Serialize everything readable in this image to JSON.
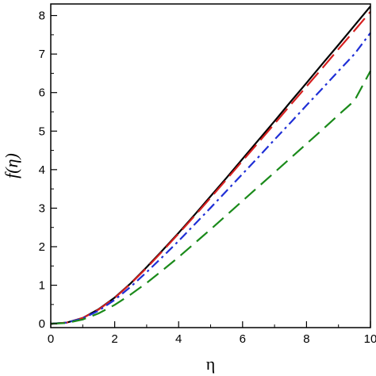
{
  "chart_data": {
    "type": "line",
    "title": "",
    "xlabel": "η",
    "ylabel": "f(η)",
    "xlim": [
      0,
      10
    ],
    "ylim": [
      -0.1,
      8.3
    ],
    "xticks": [
      0,
      2,
      4,
      6,
      8,
      10
    ],
    "yticks": [
      0,
      1,
      2,
      3,
      4,
      5,
      6,
      7,
      8
    ],
    "grid": false,
    "legend": "none",
    "series": [
      {
        "color": "#000000",
        "dash": "solid",
        "x": [
          0,
          0.5,
          1,
          1.5,
          2,
          2.5,
          3,
          3.5,
          4,
          4.5,
          5,
          5.5,
          6,
          6.5,
          7,
          7.5,
          8,
          8.5,
          9,
          9.5,
          10
        ],
        "y": [
          0,
          0.03,
          0.15,
          0.38,
          0.68,
          1.05,
          1.47,
          1.91,
          2.36,
          2.83,
          3.31,
          3.79,
          4.28,
          4.77,
          5.26,
          5.76,
          6.25,
          6.75,
          7.24,
          7.74,
          8.24
        ]
      },
      {
        "color": "#d62020",
        "dash": "longdash",
        "x": [
          0,
          0.5,
          1,
          1.5,
          2,
          2.5,
          3,
          3.5,
          4,
          4.5,
          5,
          5.5,
          6,
          6.5,
          7,
          7.5,
          8,
          8.5,
          9,
          9.5,
          10
        ],
        "y": [
          0,
          0.03,
          0.15,
          0.37,
          0.67,
          1.04,
          1.45,
          1.89,
          2.34,
          2.8,
          3.27,
          3.75,
          4.23,
          4.71,
          5.19,
          5.68,
          6.16,
          6.64,
          7.13,
          7.61,
          8.1
        ]
      },
      {
        "color": "#1f2fd6",
        "dash": "dashdot",
        "x": [
          0,
          0.5,
          1,
          1.5,
          2,
          2.5,
          3,
          3.5,
          4,
          4.5,
          5,
          5.5,
          6,
          6.5,
          7,
          7.5,
          8,
          8.5,
          9,
          9.5,
          10
        ],
        "y": [
          0,
          0.03,
          0.14,
          0.34,
          0.62,
          0.96,
          1.34,
          1.74,
          2.15,
          2.58,
          3.01,
          3.45,
          3.89,
          4.33,
          4.78,
          5.22,
          5.67,
          6.11,
          6.56,
          7.0,
          7.55
        ]
      },
      {
        "color": "#1a8a1a",
        "dash": "dash",
        "x": [
          0,
          0.5,
          1,
          1.5,
          2,
          2.5,
          3,
          3.5,
          4,
          4.5,
          5,
          5.5,
          6,
          6.5,
          7,
          7.5,
          8,
          8.5,
          9,
          9.5,
          10
        ],
        "y": [
          0,
          0.02,
          0.11,
          0.27,
          0.49,
          0.76,
          1.06,
          1.39,
          1.73,
          2.09,
          2.45,
          2.82,
          3.19,
          3.56,
          3.93,
          4.3,
          4.67,
          5.04,
          5.42,
          5.79,
          6.56
        ]
      }
    ]
  }
}
